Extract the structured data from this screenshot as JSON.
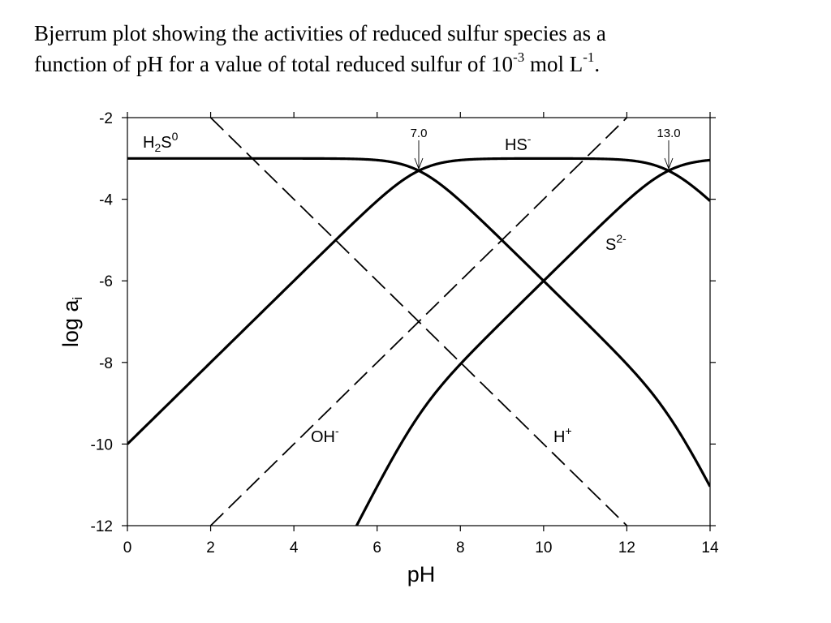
{
  "caption": {
    "line1": "Bjerrum plot showing the activities of reduced sulfur species as a",
    "line2_pre": "function of pH for a value of total reduced sulfur of 10",
    "line2_exp1": "-3",
    "line2_mid": " mol L",
    "line2_exp2": "-1",
    "line2_end": "."
  },
  "chart_data": {
    "type": "line",
    "xlabel": "pH",
    "ylabel": "log a",
    "ylabel_subscript": "i",
    "xlim": [
      0,
      14
    ],
    "ylim": [
      -12,
      -2
    ],
    "xticks": [
      "0",
      "2",
      "4",
      "6",
      "8",
      "10",
      "12",
      "14"
    ],
    "yticks": [
      "-2",
      "-4",
      "-6",
      "-8",
      "-10",
      "-12"
    ],
    "total_log_sulfur": -3,
    "pKa1": 7.0,
    "pKa2": 13.0,
    "series": [
      {
        "name": "H2S0",
        "style": "solid"
      },
      {
        "name": "HS-",
        "style": "solid"
      },
      {
        "name": "S2-",
        "style": "solid"
      },
      {
        "name": "H+",
        "style": "dashed"
      },
      {
        "name": "OH-",
        "style": "dashed"
      }
    ],
    "annotations": [
      {
        "text": "7.0",
        "x": 7.0,
        "y": -3.3
      },
      {
        "text": "13.0",
        "x": 13.0,
        "y": -3.3
      }
    ],
    "labels": {
      "h2s_base": "H",
      "h2s_sub": "2",
      "h2s_mid": "S",
      "h2s_sup": "0",
      "hs_base": "HS",
      "hs_sup": "-",
      "s_base": "S",
      "s_sup": "2-",
      "oh_base": "OH",
      "oh_sup": "-",
      "h_base": "H",
      "h_sup": "+"
    }
  }
}
